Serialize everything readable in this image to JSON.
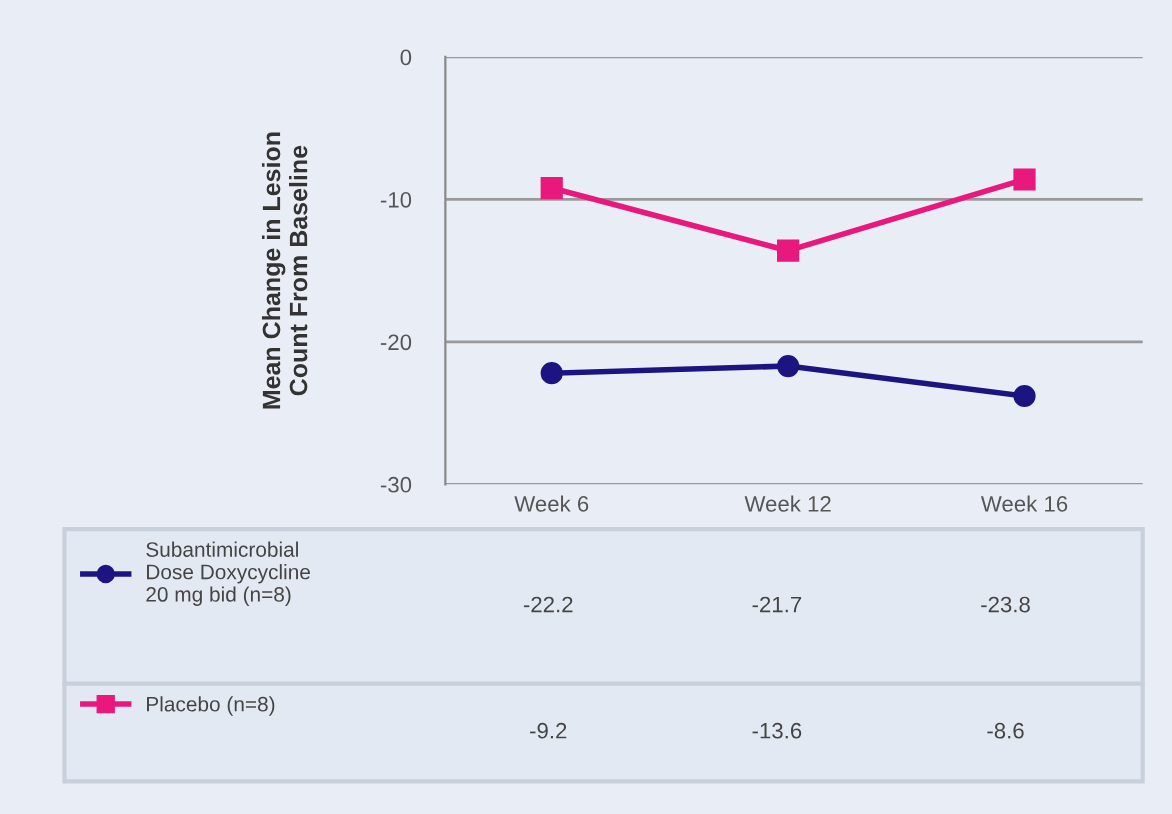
{
  "chart_data": {
    "type": "line",
    "ylabel": "Mean Change in Lesion Count From Baseline",
    "categories": [
      "Week 6",
      "Week 12",
      "Week 16"
    ],
    "series": [
      {
        "name": "Subantimicrobial Dose Doxycycline 20 mg bid (n=8)",
        "color": "#1c1480",
        "marker": "circle",
        "values": [
          -22.2,
          -21.7,
          -23.8
        ]
      },
      {
        "name": "Placebo (n=8)",
        "color": "#e8187c",
        "marker": "square",
        "values": [
          -9.2,
          -13.6,
          -8.6
        ]
      }
    ],
    "ylim": [
      -30,
      0
    ],
    "yticks": [
      0,
      -10,
      -20,
      -30
    ],
    "grid": "y",
    "legend": "bottom",
    "data_labels": true
  }
}
